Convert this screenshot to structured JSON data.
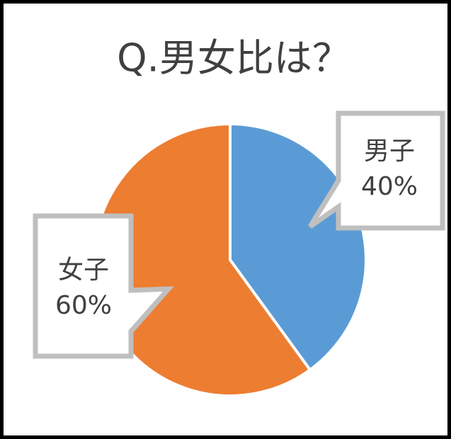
{
  "chart_data": {
    "type": "pie",
    "title": "Q.男女比は？",
    "categories": [
      "男子",
      "女子"
    ],
    "values": [
      40,
      60
    ],
    "value_labels": [
      "40%",
      "60%"
    ],
    "colors": [
      "#5b9bd5",
      "#ed7d31"
    ]
  }
}
